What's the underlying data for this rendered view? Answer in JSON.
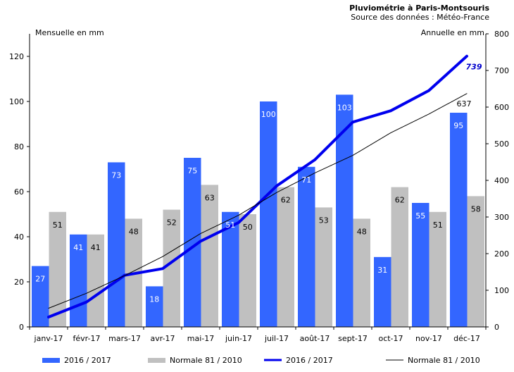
{
  "chart_data": {
    "type": "bar",
    "title": "Pluviométrie à Paris-Montsouris",
    "subtitle": "Source des données : Météo-France",
    "ylabel_left": "Mensuelle en mm",
    "ylabel_right": "Annuelle en mm",
    "ylim_left": [
      0,
      130
    ],
    "ylim_right": [
      0,
      800
    ],
    "yticks_left": [
      0,
      20,
      40,
      60,
      80,
      100,
      120
    ],
    "yticks_right": [
      0,
      100,
      200,
      300,
      400,
      500,
      600,
      700,
      800
    ],
    "categories": [
      "janv-17",
      "févr-17",
      "mars-17",
      "avr-17",
      "mai-17",
      "juin-17",
      "juil-17",
      "août-17",
      "sept-17",
      "oct-17",
      "nov-17",
      "déc-17"
    ],
    "series": [
      {
        "name": "2016 / 2017",
        "kind": "bar",
        "axis": "left",
        "color": "#3366ff",
        "label_color": "#ffffff",
        "values": [
          27,
          41,
          73,
          18,
          75,
          51,
          100,
          71,
          103,
          31,
          55,
          95
        ]
      },
      {
        "name": "Normale 81 / 2010",
        "kind": "bar",
        "axis": "left",
        "color": "#c0c0c0",
        "label_color": "#000000",
        "values": [
          51,
          41,
          48,
          52,
          63,
          50,
          62,
          53,
          48,
          62,
          51,
          58
        ]
      },
      {
        "name": "2016 / 2017",
        "kind": "line",
        "axis": "right",
        "color": "#0000ee",
        "width": 4,
        "values": [
          27,
          68,
          141,
          159,
          234,
          285,
          385,
          456,
          559,
          590,
          645,
          739
        ],
        "end_label": "739"
      },
      {
        "name": "Normale 81 / 2010",
        "kind": "line",
        "axis": "right",
        "color": "#000000",
        "width": 1,
        "values": [
          51,
          92,
          140,
          192,
          255,
          305,
          367,
          420,
          468,
          530,
          581,
          637
        ],
        "end_label": "637"
      }
    ],
    "grid": false,
    "legend_position": "bottom"
  }
}
